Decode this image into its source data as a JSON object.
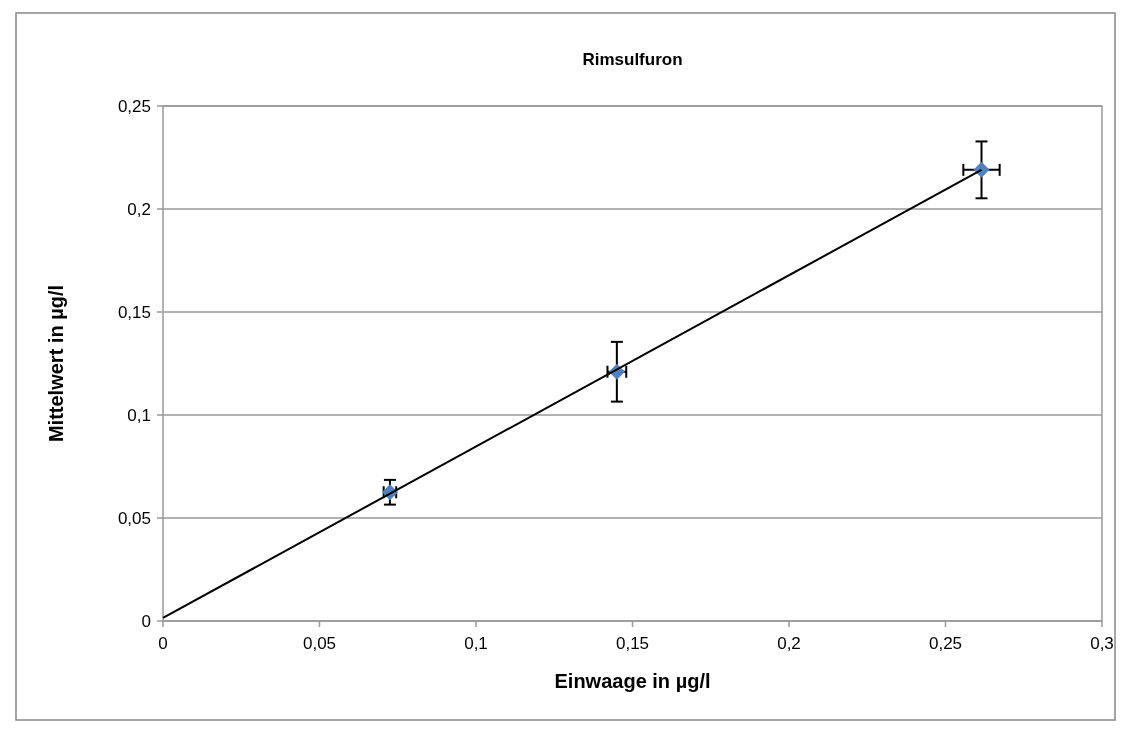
{
  "chart_data": {
    "type": "scatter",
    "title": "Rimsulfuron",
    "xlabel": "Einwaage in µg/l",
    "ylabel": "Mittelwert in µg/l",
    "series": [
      {
        "color": "#4f81bd",
        "x": [
          0.0725,
          0.145,
          0.2615
        ],
        "values": [
          0.0625,
          0.121,
          0.219
        ],
        "errors": [
          0.006,
          0.0145,
          0.0138
        ],
        "xerrors": [
          0.002,
          0.003,
          0.0058
        ],
        "marker": "diamond"
      },
      {
        "type": "line",
        "color": "#000000",
        "x": [
          0,
          0.2615
        ],
        "values": [
          0.0015,
          0.219
        ],
        "marker": "none",
        "line_style": "solid"
      }
    ],
    "xlim": [
      0,
      0.3
    ],
    "xticks": [
      {
        "value": 0,
        "label": "0"
      },
      {
        "value": 0.05,
        "label": "0,05"
      },
      {
        "value": 0.1,
        "label": "0,1"
      },
      {
        "value": 0.15,
        "label": "0,15"
      },
      {
        "value": 0.2,
        "label": "0,2"
      },
      {
        "value": 0.25,
        "label": "0,25"
      },
      {
        "value": 0.3,
        "label": "0,3"
      }
    ],
    "ylim": [
      0,
      0.25
    ],
    "yticks": [
      {
        "value": 0,
        "label": "0"
      },
      {
        "value": 0.05,
        "label": "0,05"
      },
      {
        "value": 0.1,
        "label": "0,1"
      },
      {
        "value": 0.15,
        "label": "0,15"
      },
      {
        "value": 0.2,
        "label": "0,2"
      },
      {
        "value": 0.25,
        "label": "0,25"
      }
    ],
    "grid": "y"
  }
}
